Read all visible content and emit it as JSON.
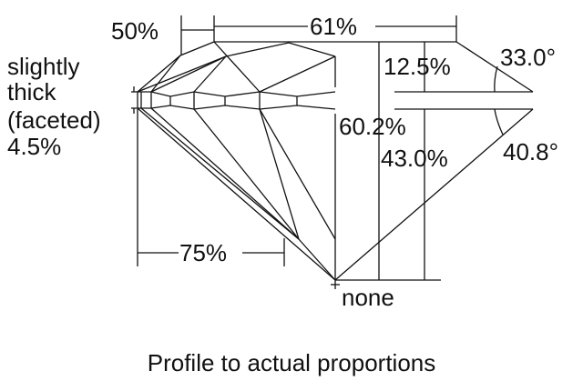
{
  "labels": {
    "table_diameter": "61%",
    "star_length": "50%",
    "girdle_line1": "slightly",
    "girdle_line2": "thick",
    "girdle_line3": "(faceted)",
    "girdle_line4": "4.5%",
    "crown_height": "12.5%",
    "crown_angle": "33.0°",
    "total_depth": "60.2%",
    "pavilion_depth": "43.0%",
    "pavilion_angle": "40.8°",
    "lower_half_length": "75%",
    "culet": "none"
  },
  "caption": "Profile to actual proportions"
}
